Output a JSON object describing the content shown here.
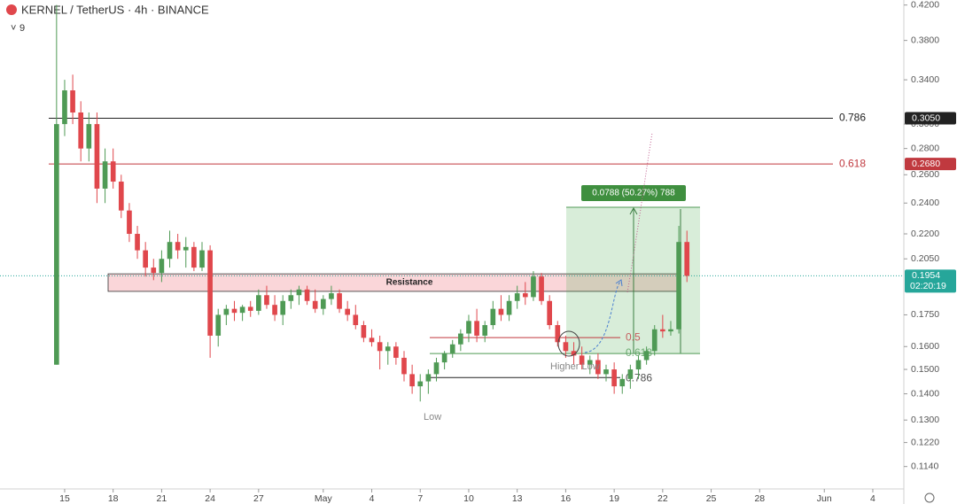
{
  "chart_data": {
    "type": "candlestick",
    "title": "KERNEL / TetherUS · 4h · BINANCE",
    "indicator": "9",
    "log_scale": true,
    "up_color": "#4f9a55",
    "down_color": "#e0474c",
    "xlim": [
      -4,
      51.92
    ],
    "ylim": [
      0.107,
      0.426
    ],
    "xticks": [
      {
        "value": 0,
        "label": "15"
      },
      {
        "value": 3,
        "label": "18"
      },
      {
        "value": 6,
        "label": "21"
      },
      {
        "value": 9,
        "label": "24"
      },
      {
        "value": 12,
        "label": "27"
      },
      {
        "value": 16,
        "label": "May"
      },
      {
        "value": 19,
        "label": "4"
      },
      {
        "value": 22,
        "label": "7"
      },
      {
        "value": 25,
        "label": "10"
      },
      {
        "value": 28,
        "label": "13"
      },
      {
        "value": 31,
        "label": "16"
      },
      {
        "value": 34,
        "label": "19"
      },
      {
        "value": 37,
        "label": "22"
      },
      {
        "value": 40,
        "label": "25"
      },
      {
        "value": 43,
        "label": "28"
      },
      {
        "value": 47,
        "label": "Jun"
      },
      {
        "value": 50,
        "label": "4"
      }
    ],
    "yticks": [
      {
        "value": 0.42,
        "label": "0.4200"
      },
      {
        "value": 0.38,
        "label": "0.3800"
      },
      {
        "value": 0.34,
        "label": "0.3400"
      },
      {
        "value": 0.3,
        "label": "0.3000"
      },
      {
        "value": 0.28,
        "label": "0.2800"
      },
      {
        "value": 0.26,
        "label": "0.2600"
      },
      {
        "value": 0.24,
        "label": "0.2400"
      },
      {
        "value": 0.22,
        "label": "0.2200"
      },
      {
        "value": 0.205,
        "label": "0.2050"
      },
      {
        "value": 0.175,
        "label": "0.1750"
      },
      {
        "value": 0.16,
        "label": "0.1600"
      },
      {
        "value": 0.15,
        "label": "0.1500"
      },
      {
        "value": 0.14,
        "label": "0.1400"
      },
      {
        "value": 0.13,
        "label": "0.1300"
      },
      {
        "value": 0.122,
        "label": "0.1220"
      },
      {
        "value": 0.114,
        "label": "0.1140"
      }
    ],
    "x": [
      -0.5,
      0,
      0.5,
      1,
      1.5,
      2,
      2.5,
      3,
      3.5,
      4,
      4.5,
      5,
      5.5,
      6,
      6.5,
      7,
      7.5,
      8,
      8.5,
      9,
      9.5,
      10,
      10.5,
      11,
      11.5,
      12,
      12.5,
      13,
      13.5,
      14,
      14.5,
      15,
      15.5,
      16,
      16.5,
      17,
      17.5,
      18,
      18.5,
      19,
      19.5,
      20,
      20.5,
      21,
      21.5,
      22,
      22.5,
      23,
      23.5,
      24,
      24.5,
      25,
      25.5,
      26,
      26.5,
      27,
      27.5,
      28,
      28.5,
      29,
      29.5,
      30,
      30.5,
      31,
      31.5,
      32,
      32.5,
      33,
      33.5,
      34,
      34.5,
      35,
      35.5,
      36,
      36.5,
      37,
      37.5,
      38,
      38.5
    ],
    "ohlc": [
      [
        0.152,
        0.42,
        0.152,
        0.3
      ],
      [
        0.3,
        0.34,
        0.29,
        0.33
      ],
      [
        0.33,
        0.345,
        0.3,
        0.31
      ],
      [
        0.31,
        0.32,
        0.27,
        0.28
      ],
      [
        0.28,
        0.31,
        0.27,
        0.3
      ],
      [
        0.3,
        0.31,
        0.24,
        0.25
      ],
      [
        0.25,
        0.28,
        0.24,
        0.27
      ],
      [
        0.27,
        0.28,
        0.25,
        0.255
      ],
      [
        0.255,
        0.26,
        0.23,
        0.235
      ],
      [
        0.235,
        0.24,
        0.215,
        0.22
      ],
      [
        0.22,
        0.225,
        0.205,
        0.21
      ],
      [
        0.21,
        0.215,
        0.195,
        0.2
      ],
      [
        0.2,
        0.205,
        0.193,
        0.197
      ],
      [
        0.197,
        0.21,
        0.192,
        0.205
      ],
      [
        0.205,
        0.222,
        0.2,
        0.215
      ],
      [
        0.215,
        0.22,
        0.205,
        0.21
      ],
      [
        0.21,
        0.218,
        0.2,
        0.212
      ],
      [
        0.212,
        0.215,
        0.198,
        0.2
      ],
      [
        0.2,
        0.215,
        0.198,
        0.21
      ],
      [
        0.21,
        0.213,
        0.155,
        0.165
      ],
      [
        0.165,
        0.178,
        0.16,
        0.175
      ],
      [
        0.175,
        0.18,
        0.17,
        0.178
      ],
      [
        0.178,
        0.182,
        0.172,
        0.176
      ],
      [
        0.176,
        0.18,
        0.172,
        0.179
      ],
      [
        0.179,
        0.182,
        0.174,
        0.177
      ],
      [
        0.177,
        0.188,
        0.175,
        0.185
      ],
      [
        0.185,
        0.19,
        0.178,
        0.18
      ],
      [
        0.18,
        0.185,
        0.172,
        0.175
      ],
      [
        0.175,
        0.185,
        0.17,
        0.182
      ],
      [
        0.182,
        0.188,
        0.178,
        0.185
      ],
      [
        0.185,
        0.19,
        0.18,
        0.188
      ],
      [
        0.188,
        0.19,
        0.18,
        0.182
      ],
      [
        0.182,
        0.188,
        0.176,
        0.178
      ],
      [
        0.178,
        0.185,
        0.175,
        0.183
      ],
      [
        0.183,
        0.19,
        0.18,
        0.186
      ],
      [
        0.186,
        0.188,
        0.176,
        0.178
      ],
      [
        0.178,
        0.182,
        0.172,
        0.175
      ],
      [
        0.175,
        0.18,
        0.168,
        0.17
      ],
      [
        0.17,
        0.172,
        0.162,
        0.164
      ],
      [
        0.164,
        0.168,
        0.16,
        0.162
      ],
      [
        0.162,
        0.165,
        0.15,
        0.158
      ],
      [
        0.158,
        0.162,
        0.152,
        0.16
      ],
      [
        0.16,
        0.162,
        0.152,
        0.155
      ],
      [
        0.155,
        0.158,
        0.145,
        0.148
      ],
      [
        0.148,
        0.152,
        0.14,
        0.143
      ],
      [
        0.143,
        0.148,
        0.137,
        0.145
      ],
      [
        0.145,
        0.15,
        0.14,
        0.148
      ],
      [
        0.148,
        0.155,
        0.145,
        0.153
      ],
      [
        0.153,
        0.158,
        0.15,
        0.157
      ],
      [
        0.157,
        0.163,
        0.155,
        0.161
      ],
      [
        0.161,
        0.168,
        0.158,
        0.166
      ],
      [
        0.166,
        0.175,
        0.162,
        0.172
      ],
      [
        0.172,
        0.178,
        0.162,
        0.165
      ],
      [
        0.165,
        0.172,
        0.162,
        0.17
      ],
      [
        0.17,
        0.182,
        0.168,
        0.178
      ],
      [
        0.178,
        0.185,
        0.172,
        0.175
      ],
      [
        0.175,
        0.185,
        0.172,
        0.182
      ],
      [
        0.182,
        0.19,
        0.178,
        0.186
      ],
      [
        0.186,
        0.192,
        0.18,
        0.184
      ],
      [
        0.184,
        0.198,
        0.182,
        0.195
      ],
      [
        0.195,
        0.197,
        0.18,
        0.182
      ],
      [
        0.182,
        0.185,
        0.168,
        0.17
      ],
      [
        0.17,
        0.172,
        0.16,
        0.162
      ],
      [
        0.162,
        0.165,
        0.155,
        0.158
      ],
      [
        0.158,
        0.162,
        0.152,
        0.156
      ],
      [
        0.156,
        0.16,
        0.15,
        0.152
      ],
      [
        0.152,
        0.156,
        0.148,
        0.154
      ],
      [
        0.154,
        0.157,
        0.146,
        0.148
      ],
      [
        0.148,
        0.152,
        0.145,
        0.15
      ],
      [
        0.15,
        0.153,
        0.14,
        0.143
      ],
      [
        0.143,
        0.148,
        0.14,
        0.146
      ],
      [
        0.146,
        0.152,
        0.142,
        0.15
      ],
      [
        0.15,
        0.156,
        0.146,
        0.154
      ],
      [
        0.154,
        0.16,
        0.152,
        0.158
      ],
      [
        0.158,
        0.17,
        0.156,
        0.168
      ],
      [
        0.168,
        0.175,
        0.164,
        0.167
      ],
      [
        0.167,
        0.172,
        0.165,
        0.168
      ],
      [
        0.168,
        0.225,
        0.166,
        0.215
      ],
      [
        0.215,
        0.222,
        0.192,
        0.1954
      ]
    ],
    "levels": [
      {
        "label": "0.786",
        "value": 0.305,
        "price_label": "0.3050",
        "color": "#222222"
      },
      {
        "label": "0.618",
        "value": 0.268,
        "price_label": "0.2680",
        "color": "#c0393f"
      }
    ],
    "zone": {
      "label": "Resistance",
      "range": [
        0.187,
        0.1965
      ]
    },
    "position": {
      "label": "0.0788 (50.27%) 788",
      "range": [
        0.157,
        0.2372
      ]
    },
    "fib_levels": [
      {
        "label": "0.5",
        "value": 0.1641,
        "color": "#c0393f"
      },
      {
        "label": "0.618",
        "value": 0.1569,
        "color": "#4f9a55"
      },
      {
        "label": "0.786",
        "value": 0.1466,
        "color": "#222222"
      }
    ],
    "notes": [
      "Higher Low",
      "Low"
    ],
    "current": {
      "value": 0.1954,
      "label": "0.1954",
      "countdown": "02:20:19"
    }
  }
}
